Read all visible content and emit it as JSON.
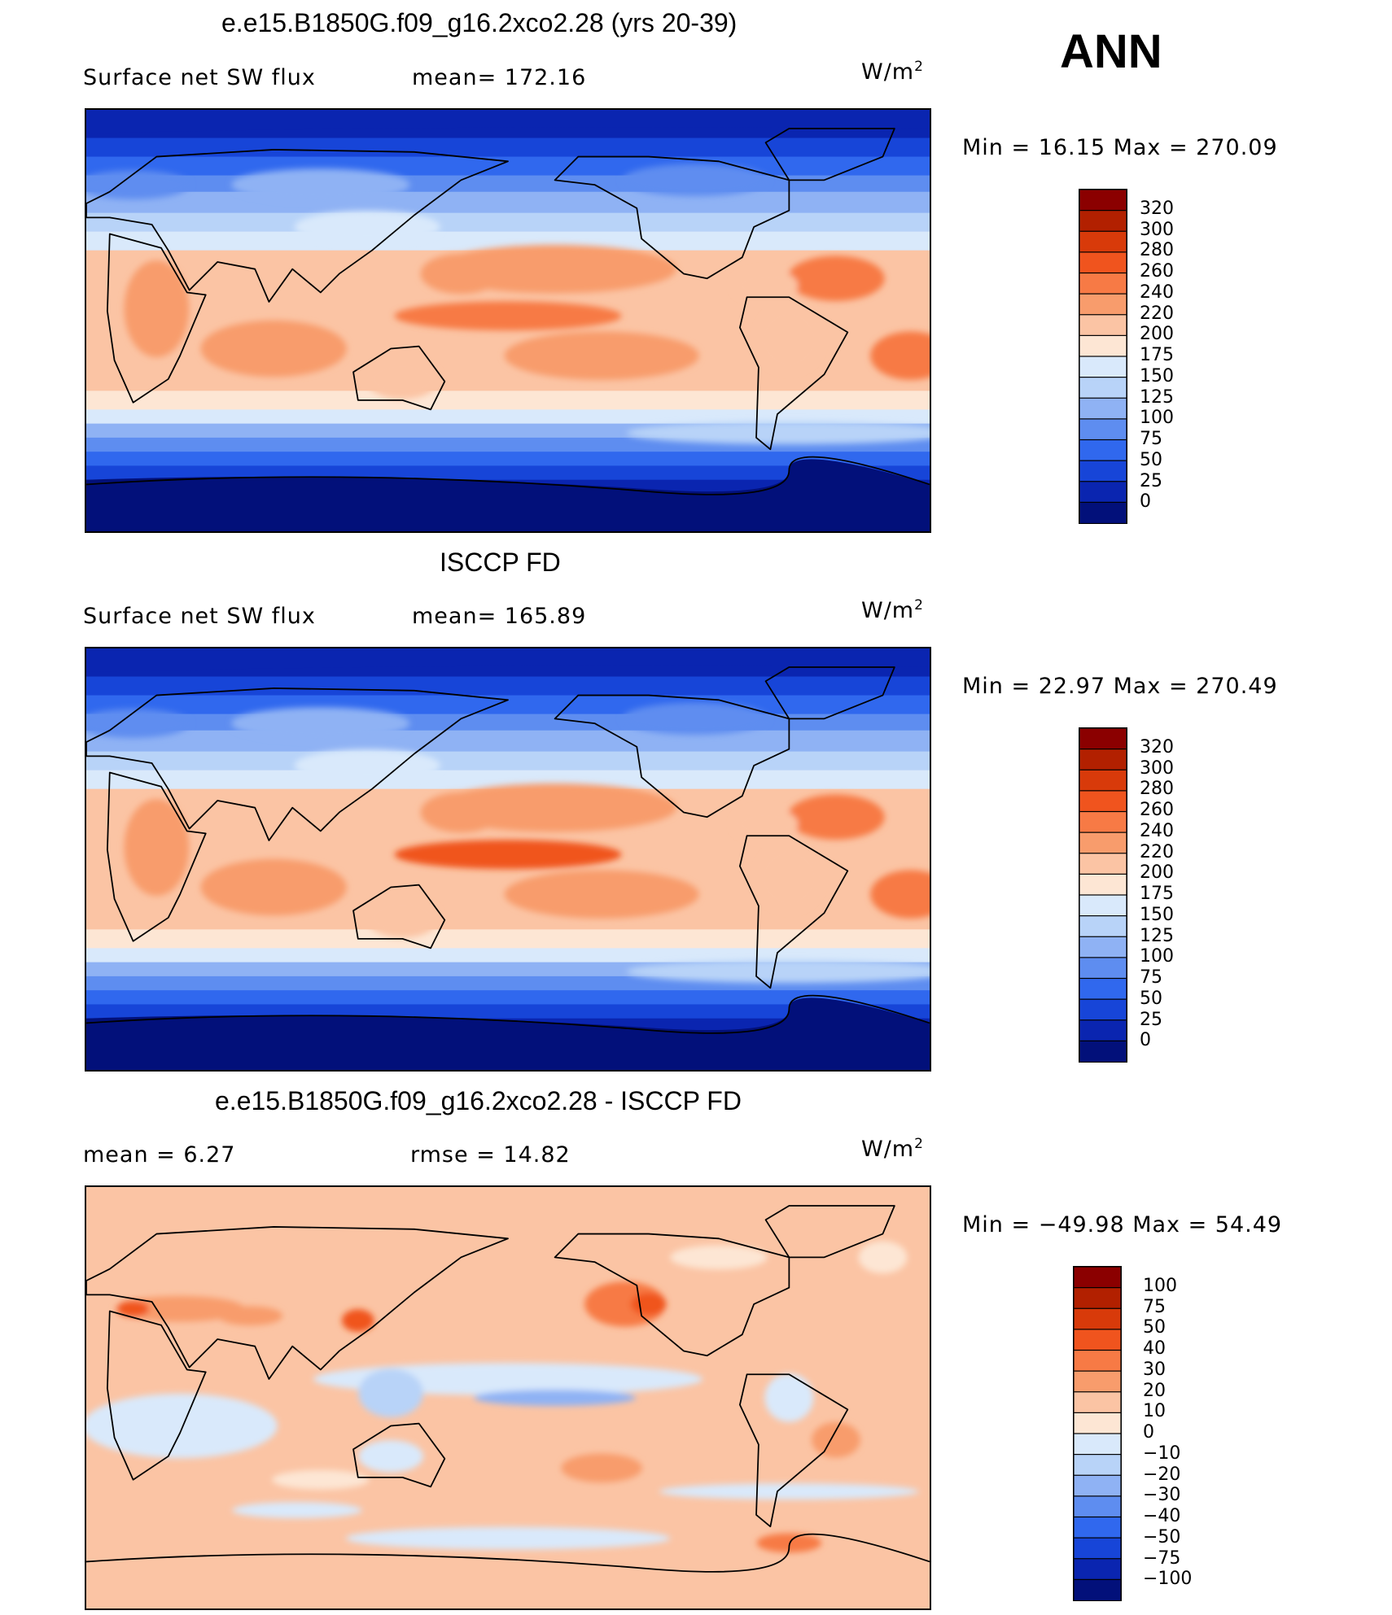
{
  "season": "ANN",
  "units": "W/m",
  "units_sup": "2",
  "chart_data": [
    {
      "type": "heatmap",
      "title": "e.e15.B1850G.f09_g16.2xco2.28 (yrs 20-39)",
      "variable": "Surface net SW flux",
      "stat1": "mean= 172.16",
      "stat2": "",
      "minmax": "Min =  16.15 Max = 270.09",
      "levels": [
        "320",
        "300",
        "280",
        "260",
        "240",
        "220",
        "200",
        "175",
        "150",
        "125",
        "100",
        "75",
        "50",
        "25",
        "0"
      ],
      "colors": [
        "#8b0000",
        "#b22000",
        "#d83a0a",
        "#f0541e",
        "#f77a45",
        "#f89c6c",
        "#fbc4a4",
        "#fde6d4",
        "#d9e9fb",
        "#b8d3f8",
        "#8fb2f4",
        "#5e8df0",
        "#3068ee",
        "#1745d8",
        "#0a25b0",
        "#02107a"
      ]
    },
    {
      "type": "heatmap",
      "title": "ISCCP FD",
      "variable": "Surface net SW flux",
      "stat1": "mean= 165.89",
      "stat2": "",
      "minmax": "Min =  22.97 Max = 270.49",
      "levels": [
        "320",
        "300",
        "280",
        "260",
        "240",
        "220",
        "200",
        "175",
        "150",
        "125",
        "100",
        "75",
        "50",
        "25",
        "0"
      ],
      "colors": [
        "#8b0000",
        "#b22000",
        "#d83a0a",
        "#f0541e",
        "#f77a45",
        "#f89c6c",
        "#fbc4a4",
        "#fde6d4",
        "#d9e9fb",
        "#b8d3f8",
        "#8fb2f4",
        "#5e8df0",
        "#3068ee",
        "#1745d8",
        "#0a25b0",
        "#02107a"
      ]
    },
    {
      "type": "heatmap",
      "title": "e.e15.B1850G.f09_g16.2xco2.28 - ISCCP FD",
      "variable": "mean =    6.27",
      "stat1": "rmse =   14.82",
      "stat2": "",
      "minmax": "Min = −49.98 Max =   54.49",
      "levels": [
        "100",
        "75",
        "50",
        "40",
        "30",
        "20",
        "10",
        "0",
        "−10",
        "−20",
        "−30",
        "−40",
        "−50",
        "−75",
        "−100"
      ],
      "colors": [
        "#8b0000",
        "#b22000",
        "#d83a0a",
        "#f0541e",
        "#f77a45",
        "#f89c6c",
        "#fbc4a4",
        "#fde6d4",
        "#d9e9fb",
        "#b8d3f8",
        "#8fb2f4",
        "#5e8df0",
        "#3068ee",
        "#1745d8",
        "#0a25b0",
        "#02107a"
      ]
    }
  ]
}
